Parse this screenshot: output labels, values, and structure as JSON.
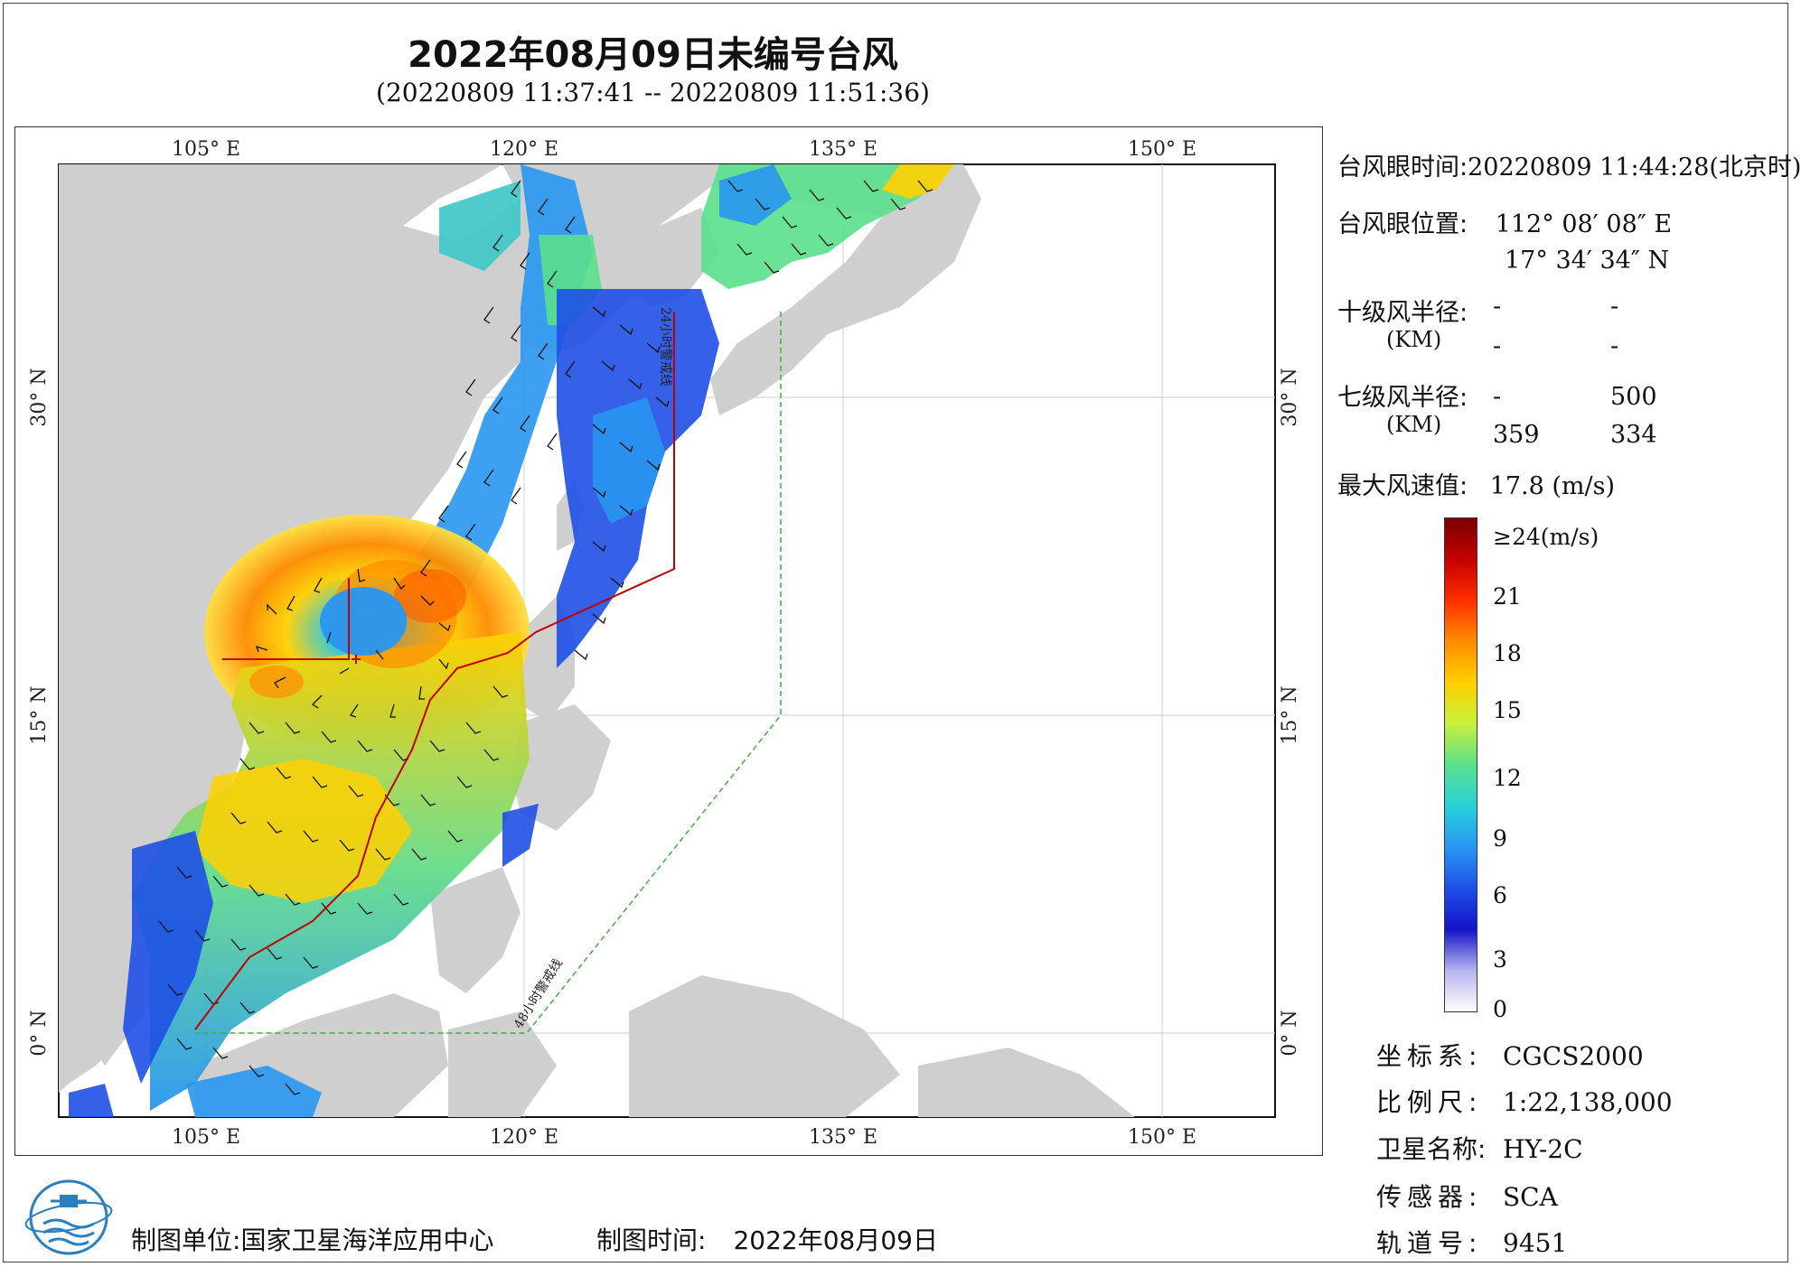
{
  "title": "2022年08月09日未编号台风",
  "subtitle": "(20220809 11:37:41 -- 20220809 11:51:36)",
  "axes": {
    "lon_labels": [
      "105° E",
      "120° E",
      "135° E",
      "150° E"
    ],
    "lat_labels": [
      "30° N",
      "15° N",
      "0° N"
    ]
  },
  "map_labels": {
    "line24": "24小时警戒线",
    "line48": "48小时警戒线"
  },
  "info": {
    "eye_time_label": "台风眼时间:",
    "eye_time_value": "20220809 11:44:28(北京时)",
    "eye_pos_label": "台风眼位置:",
    "eye_lon": "112° 08′ 08″ E",
    "eye_lat": "17° 34′ 34″ N",
    "r10_label": "十级风半径:",
    "r10_row1": [
      "-",
      "-"
    ],
    "r10_unit": "(KM)",
    "r10_row2": [
      "-",
      "-"
    ],
    "r7_label": "七级风半径:",
    "r7_row1": [
      "-",
      "500"
    ],
    "r7_unit": "(KM)",
    "r7_row2": [
      "359",
      "334"
    ],
    "max_wind_label": "最大风速值:",
    "max_wind_value": "17.8  (m/s)"
  },
  "colorbar": {
    "labels": [
      "≥24(m/s)",
      "21",
      "18",
      "15",
      "12",
      "9",
      "6",
      "3",
      "0"
    ],
    "colors": [
      "#7a0000",
      "#c40000",
      "#ff3000",
      "#ff8c00",
      "#ffd000",
      "#c8f03c",
      "#5ae08c",
      "#28d2dc",
      "#2896f0",
      "#1e50e6",
      "#1414c8",
      "#b4b4f0",
      "#ffffff"
    ]
  },
  "meta": [
    {
      "k": "坐标系:",
      "v": "CGCS2000"
    },
    {
      "k": "比例尺:",
      "v": "1:22,138,000"
    },
    {
      "k": "卫星名称:",
      "v": "HY-2C"
    },
    {
      "k": "传感器:",
      "v": "SCA"
    },
    {
      "k": "轨道号:",
      "v": "9451"
    }
  ],
  "footer": {
    "unit_label": "制图单位:",
    "unit_value": "国家卫星海洋应用中心",
    "time_label": "制图时间:",
    "time_value": "2022年08月09日"
  }
}
